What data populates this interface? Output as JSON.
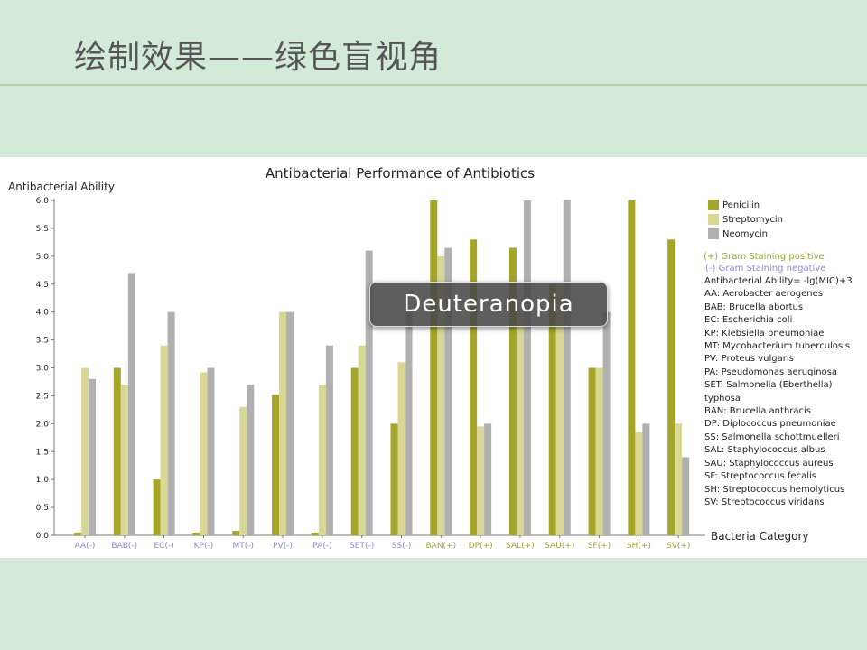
{
  "slide": {
    "title": "绘制效果——绿色盲视角"
  },
  "overlay": {
    "label": "Deuteranopia"
  },
  "colors": {
    "penicilin": "#a5a52a",
    "streptomycin": "#d8d894",
    "neomycin": "#b0b0b0",
    "gram_positive": "#9aa33a",
    "gram_negative": "#8a8ad0",
    "background": "#d3ead8"
  },
  "legend": {
    "gram_positive": "(+) Gram Staining positive",
    "gram_negative": "(-) Gram Staining negative",
    "formula": "Antibacterial Ability= -lg(MIC)+3",
    "abbreviations": [
      "AA: Aerobacter aerogenes",
      "BAB: Brucella abortus",
      "EC: Escherichia coli",
      "KP: Klebsiella pneumoniae",
      "MT: Mycobacterium tuberculosis",
      "PV: Proteus vulgaris",
      "PA: Pseudomonas aeruginosa",
      "SET: Salmonella (Eberthella) typhosa",
      "BAN: Brucella anthracis",
      "DP: Diplococcus pneumoniae",
      "SS: Salmonella schottmuelleri",
      "SAL: Staphylococcus albus",
      "SAU: Staphylococcus aureus",
      "SF: Streptococcus fecalis",
      "SH: Streptococcus hemolyticus",
      "SV: Streptococcus viridans"
    ]
  },
  "chart_data": {
    "type": "bar",
    "title": "Antibacterial Performance of Antibiotics",
    "ylabel": "Antibacterial Ability",
    "xlabel": "Bacteria Category",
    "ylim": [
      0,
      6
    ],
    "yticks": [
      "0.0",
      "0.5",
      "1.0",
      "1.5",
      "2.0",
      "2.5",
      "3.0",
      "3.5",
      "4.0",
      "4.5",
      "5.0",
      "5.5",
      "6.0"
    ],
    "categories": [
      "AA(-)",
      "BAB(-)",
      "EC(-)",
      "KP(-)",
      "MT(-)",
      "PV(-)",
      "PA(-)",
      "SET(-)",
      "SS(-)",
      "BAN(+)",
      "DP(+)",
      "SAL(+)",
      "SAU(+)",
      "SF(+)",
      "SH(+)",
      "SV(+)"
    ],
    "gram": [
      "-",
      "-",
      "-",
      "-",
      "-",
      "-",
      "-",
      "-",
      "-",
      "+",
      "+",
      "+",
      "+",
      "+",
      "+",
      "+"
    ],
    "series": [
      {
        "name": "Penicilin",
        "values": [
          0.05,
          3.0,
          1.0,
          0.05,
          0.08,
          2.52,
          0.05,
          3.0,
          2.0,
          6.0,
          5.3,
          5.15,
          4.5,
          3.0,
          6.0,
          5.3
        ]
      },
      {
        "name": "Streptomycin",
        "values": [
          3.0,
          2.7,
          3.4,
          2.92,
          2.3,
          4.0,
          2.7,
          3.4,
          3.1,
          5.0,
          1.95,
          4.0,
          4.5,
          3.0,
          1.85,
          2.0
        ]
      },
      {
        "name": "Neomycin",
        "values": [
          2.8,
          4.7,
          4.0,
          3.0,
          2.7,
          4.0,
          3.4,
          5.1,
          4.0,
          5.15,
          2.0,
          6.0,
          6.0,
          4.0,
          2.0,
          1.4
        ]
      }
    ],
    "grid": false,
    "legend_position": "right"
  }
}
